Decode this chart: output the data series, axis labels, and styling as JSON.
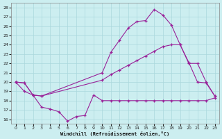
{
  "xlabel": "Windchill (Refroidissement éolien,°C)",
  "background_color": "#cceef0",
  "grid_color": "#aad8dc",
  "line_color": "#992299",
  "ylim": [
    15.5,
    28.5
  ],
  "xlim": [
    -0.5,
    23.5
  ],
  "yticks": [
    16,
    17,
    18,
    19,
    20,
    21,
    22,
    23,
    24,
    25,
    26,
    27,
    28
  ],
  "xticks": [
    0,
    1,
    2,
    3,
    4,
    5,
    6,
    7,
    8,
    9,
    10,
    11,
    12,
    13,
    14,
    15,
    16,
    17,
    18,
    19,
    20,
    21,
    22,
    23
  ],
  "series_top_x": [
    0,
    1,
    2,
    3,
    10,
    11,
    12,
    13,
    14,
    15,
    16,
    17,
    18,
    19,
    20,
    21,
    22,
    23
  ],
  "series_top_y": [
    20.0,
    19.9,
    18.6,
    18.5,
    21.0,
    23.2,
    24.5,
    25.8,
    26.5,
    26.6,
    27.8,
    27.2,
    26.1,
    24.0,
    22.1,
    20.0,
    19.9,
    18.5
  ],
  "series_mid_x": [
    0,
    1,
    2,
    3,
    10,
    11,
    12,
    13,
    14,
    15,
    16,
    17,
    18,
    19,
    20,
    21,
    22,
    23
  ],
  "series_mid_y": [
    20.0,
    19.9,
    18.6,
    18.5,
    20.2,
    20.8,
    21.3,
    21.8,
    22.3,
    22.8,
    23.3,
    23.8,
    24.0,
    24.0,
    22.0,
    22.0,
    20.0,
    18.5
  ],
  "series_bot_x": [
    0,
    1,
    2,
    3,
    4,
    5,
    6,
    7,
    8,
    9,
    10,
    11,
    12,
    13,
    14,
    15,
    16,
    17,
    18,
    19,
    20,
    21,
    22,
    23
  ],
  "series_bot_y": [
    20.0,
    19.0,
    18.6,
    17.3,
    17.1,
    16.8,
    15.8,
    16.3,
    16.4,
    18.6,
    18.0,
    18.0,
    18.0,
    18.0,
    18.0,
    18.0,
    18.0,
    18.0,
    18.0,
    18.0,
    18.0,
    18.0,
    18.0,
    18.3
  ]
}
